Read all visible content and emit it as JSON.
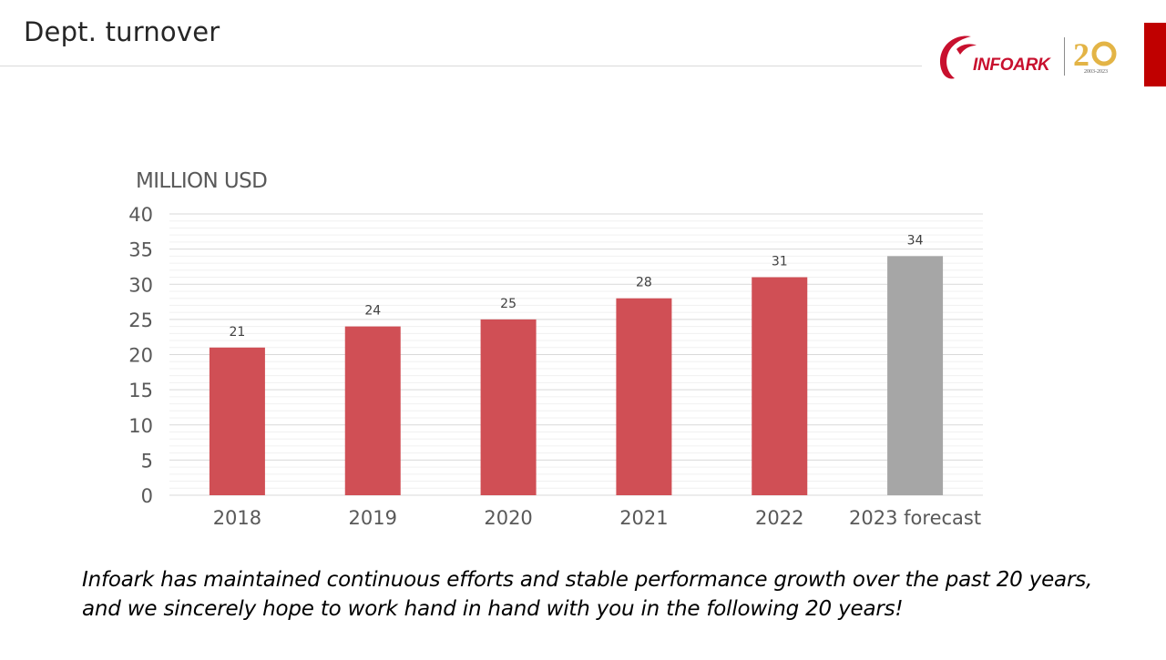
{
  "slide": {
    "title": "Dept. turnover",
    "footer": "Infoark has maintained continuous efforts and stable performance growth over the past 20 years, and we sincerely hope to work hand in hand with you in the following 20 years!"
  },
  "logo": {
    "brand": "INFOARK",
    "anniversary_years": "2003-2023",
    "colors": {
      "brand": "#c8102e",
      "anniversary": "#e3b446",
      "tab": "#c00000"
    }
  },
  "chart_data": {
    "type": "bar",
    "ylabel": "MILLION USD",
    "categories": [
      "2018",
      "2019",
      "2020",
      "2021",
      "2022",
      "2023 forecast"
    ],
    "values": [
      21,
      24,
      25,
      28,
      31,
      34
    ],
    "data_labels": [
      "21",
      "24",
      "25",
      "28",
      "31",
      "34"
    ],
    "bar_colors": [
      "#d04f55",
      "#d04f55",
      "#d04f55",
      "#d04f55",
      "#d04f55",
      "#a6a6a6"
    ],
    "ylim": [
      0,
      40
    ],
    "yticks": [
      0,
      5,
      10,
      15,
      20,
      25,
      30,
      35,
      40
    ],
    "ytick_labels": [
      "0",
      "5",
      "10",
      "15",
      "20",
      "25",
      "30",
      "35",
      "40"
    ],
    "grid": true,
    "legend": "none"
  }
}
